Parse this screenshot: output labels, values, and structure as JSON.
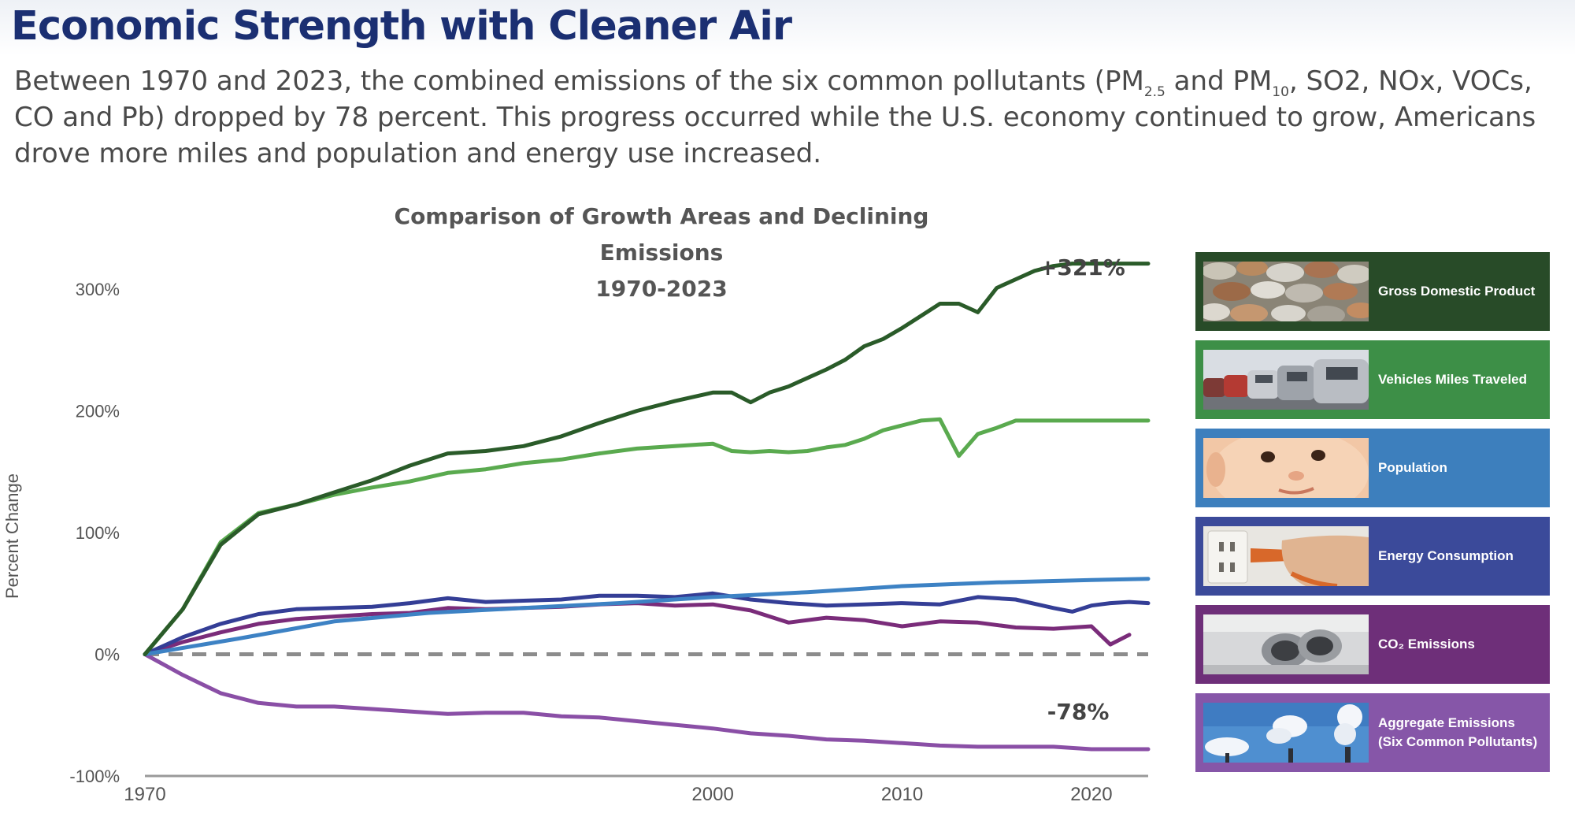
{
  "header": {
    "title": "Economic Strength with Cleaner Air",
    "intro_part1": "Between 1970 and 2023, the combined emissions of the six common pollutants (PM",
    "intro_sub1": "2.5",
    "intro_part2": " and PM",
    "intro_sub2": "10",
    "intro_part3": ", SO2, NOx, VOCs, CO and Pb) dropped by 78 percent. This progress occurred while the U.S. economy continued to grow, Americans drove more miles and population and energy use increased."
  },
  "chart_data": {
    "type": "line",
    "title": "Comparison of Growth Areas and Declining Emissions",
    "subtitle": "1970-2023",
    "xlabel": "",
    "ylabel": "Percent Change",
    "xlim": [
      1970,
      2023
    ],
    "ylim": [
      -100,
      320
    ],
    "x_ticks": [
      "1970",
      "2000",
      "2010",
      "2020"
    ],
    "y_ticks": [
      "300%",
      "200%",
      "100%",
      "0%",
      "-100%"
    ],
    "baseline_zero_dashed": true,
    "annotations": [
      {
        "text": "+321%",
        "x": 2019.5,
        "y": 318
      },
      {
        "text": "-78%",
        "x": 2019.3,
        "y": -47
      }
    ],
    "series": [
      {
        "name": "Gross Domestic Product",
        "color": "#2a5b29",
        "x": [
          1970,
          1972,
          1974,
          1976,
          1978,
          1980,
          1982,
          1984,
          1986,
          1988,
          1990,
          1992,
          1994,
          1996,
          1998,
          2000,
          2001,
          2002,
          2003,
          2004,
          2005,
          2006,
          2007,
          2008,
          2009,
          2010,
          2011,
          2012,
          2013,
          2014,
          2015,
          2016,
          2017,
          2018,
          2019,
          2020,
          2021,
          2022,
          2023
        ],
        "values": [
          0,
          37,
          90,
          115,
          123,
          133,
          143,
          155,
          165,
          167,
          171,
          179,
          190,
          200,
          208,
          215,
          215,
          207,
          215,
          220,
          227,
          234,
          242,
          253,
          259,
          268,
          278,
          288,
          288,
          281,
          301,
          308,
          315,
          319,
          321,
          321,
          321,
          321,
          321
        ]
      },
      {
        "name": "Vehicles Miles Traveled",
        "color": "#5aaa4f",
        "x": [
          1970,
          1972,
          1974,
          1976,
          1978,
          1980,
          1982,
          1984,
          1986,
          1988,
          1990,
          1992,
          1994,
          1996,
          1998,
          2000,
          2001,
          2002,
          2003,
          2004,
          2005,
          2006,
          2007,
          2008,
          2009,
          2010,
          2011,
          2012,
          2013,
          2014,
          2015,
          2016,
          2017,
          2018,
          2019,
          2020,
          2021,
          2022,
          2023
        ],
        "values": [
          0,
          37,
          92,
          116,
          123,
          131,
          137,
          142,
          149,
          152,
          157,
          160,
          165,
          169,
          171,
          173,
          167,
          166,
          167,
          166,
          167,
          170,
          172,
          177,
          184,
          188,
          192,
          193,
          163,
          181,
          186,
          192,
          192,
          192,
          192,
          192,
          192,
          192,
          192
        ]
      },
      {
        "name": "Population",
        "color": "#3d82c4",
        "x": [
          1970,
          1975,
          1980,
          1985,
          1990,
          1995,
          2000,
          2005,
          2010,
          2015,
          2020,
          2023
        ],
        "values": [
          0,
          13,
          27,
          34,
          38,
          42,
          47,
          51,
          56,
          59,
          61,
          62
        ]
      },
      {
        "name": "Energy Consumption",
        "color": "#343e96",
        "x": [
          1970,
          1972,
          1974,
          1976,
          1978,
          1980,
          1982,
          1984,
          1986,
          1988,
          1990,
          1992,
          1994,
          1996,
          1998,
          2000,
          2002,
          2004,
          2006,
          2008,
          2010,
          2012,
          2014,
          2016,
          2018,
          2019,
          2020,
          2021,
          2022,
          2023
        ],
        "values": [
          0,
          14,
          25,
          33,
          37,
          38,
          39,
          42,
          46,
          43,
          44,
          45,
          48,
          48,
          47,
          50,
          45,
          42,
          40,
          41,
          42,
          41,
          47,
          45,
          38,
          35,
          40,
          42,
          43,
          42
        ]
      },
      {
        "name": "CO₂ Emissions",
        "color": "#7a2c7a",
        "x": [
          1970,
          1972,
          1974,
          1976,
          1978,
          1980,
          1982,
          1984,
          1986,
          1988,
          1990,
          1992,
          1994,
          1996,
          1998,
          2000,
          2002,
          2004,
          2006,
          2008,
          2010,
          2012,
          2014,
          2016,
          2018,
          2020,
          2021,
          2022
        ],
        "values": [
          0,
          10,
          18,
          25,
          29,
          31,
          33,
          34,
          38,
          37,
          38,
          39,
          41,
          42,
          40,
          41,
          36,
          26,
          30,
          28,
          23,
          27,
          26,
          22,
          21,
          23,
          8,
          16
        ]
      },
      {
        "name": "Aggregate Emissions (Six Common Pollutants)",
        "color": "#8a4fa6",
        "x": [
          1970,
          1972,
          1974,
          1976,
          1978,
          1980,
          1982,
          1984,
          1986,
          1988,
          1990,
          1992,
          1994,
          1996,
          1998,
          2000,
          2002,
          2004,
          2006,
          2008,
          2010,
          2012,
          2014,
          2016,
          2018,
          2020,
          2022,
          2023
        ],
        "values": [
          0,
          -17,
          -32,
          -40,
          -43,
          -43,
          -45,
          -47,
          -49,
          -48,
          -48,
          -51,
          -52,
          -55,
          -58,
          -61,
          -65,
          -67,
          -70,
          -71,
          -73,
          -75,
          -76,
          -76,
          -76,
          -78,
          -78,
          -78
        ]
      }
    ]
  },
  "legend": {
    "items": [
      {
        "label": "Gross Domestic Product",
        "label_line2": "",
        "bg": "#284b28",
        "icon": "coins-photo"
      },
      {
        "label": "Vehicles Miles Traveled",
        "label_line2": "",
        "bg": "#3d8f47",
        "icon": "traffic-photo"
      },
      {
        "label": "Population",
        "label_line2": "",
        "bg": "#3d7fbd",
        "icon": "baby-photo"
      },
      {
        "label": "Energy Consumption",
        "label_line2": "",
        "bg": "#3b4a9a",
        "icon": "power-plug-photo"
      },
      {
        "label": "CO₂ Emissions",
        "label_line2": "",
        "bg": "#6e2f79",
        "icon": "exhaust-pipe-photo"
      },
      {
        "label": "Aggregate Emissions",
        "label_line2": "(Six Common Pollutants)",
        "bg": "#8656a8",
        "icon": "smokestacks-photo"
      }
    ]
  }
}
